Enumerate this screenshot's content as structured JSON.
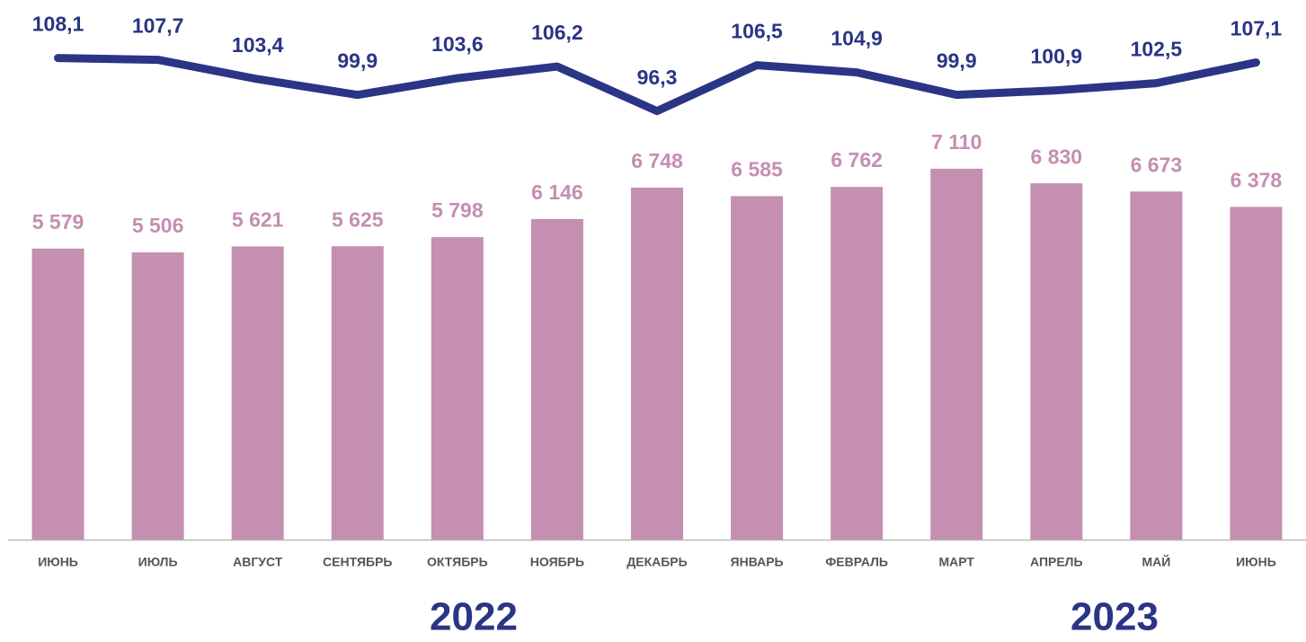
{
  "chart_data": {
    "type": "bar",
    "categories": [
      "ИЮНЬ",
      "ИЮЛЬ",
      "АВГУСТ",
      "СЕНТЯБРЬ",
      "ОКТЯБРЬ",
      "НОЯБРЬ",
      "ДЕКАБРЬ",
      "ЯНВАРЬ",
      "ФЕВРАЛЬ",
      "МАРТ",
      "АПРЕЛЬ",
      "МАЙ",
      "ИЮНЬ"
    ],
    "series": [
      {
        "type": "bar",
        "color": "#c48fb1",
        "values": [
          5579,
          5506,
          5621,
          5625,
          5798,
          6146,
          6748,
          6585,
          6762,
          7110,
          6830,
          6673,
          6378
        ],
        "value_labels": [
          "5 579",
          "5 506",
          "5 621",
          "5 625",
          "5 798",
          "6 146",
          "6 748",
          "6 585",
          "6 762",
          "7 110",
          "6 830",
          "6 673",
          "6 378"
        ]
      },
      {
        "type": "line",
        "axis": "y2",
        "color": "#2b3585",
        "values": [
          108.1,
          107.7,
          103.4,
          99.9,
          103.6,
          106.2,
          96.3,
          106.5,
          104.9,
          99.9,
          100.9,
          102.5,
          107.1
        ],
        "value_labels": [
          "108,1",
          "107,7",
          "103,4",
          "99,9",
          "103,6",
          "106,2",
          "96,3",
          "106,5",
          "104,9",
          "99,9",
          "100,9",
          "102,5",
          "107,1"
        ]
      }
    ],
    "ylim": [
      0,
      10000
    ],
    "y2lim": [
      1,
      117
    ],
    "annotations": [
      "2022",
      "2023"
    ]
  }
}
